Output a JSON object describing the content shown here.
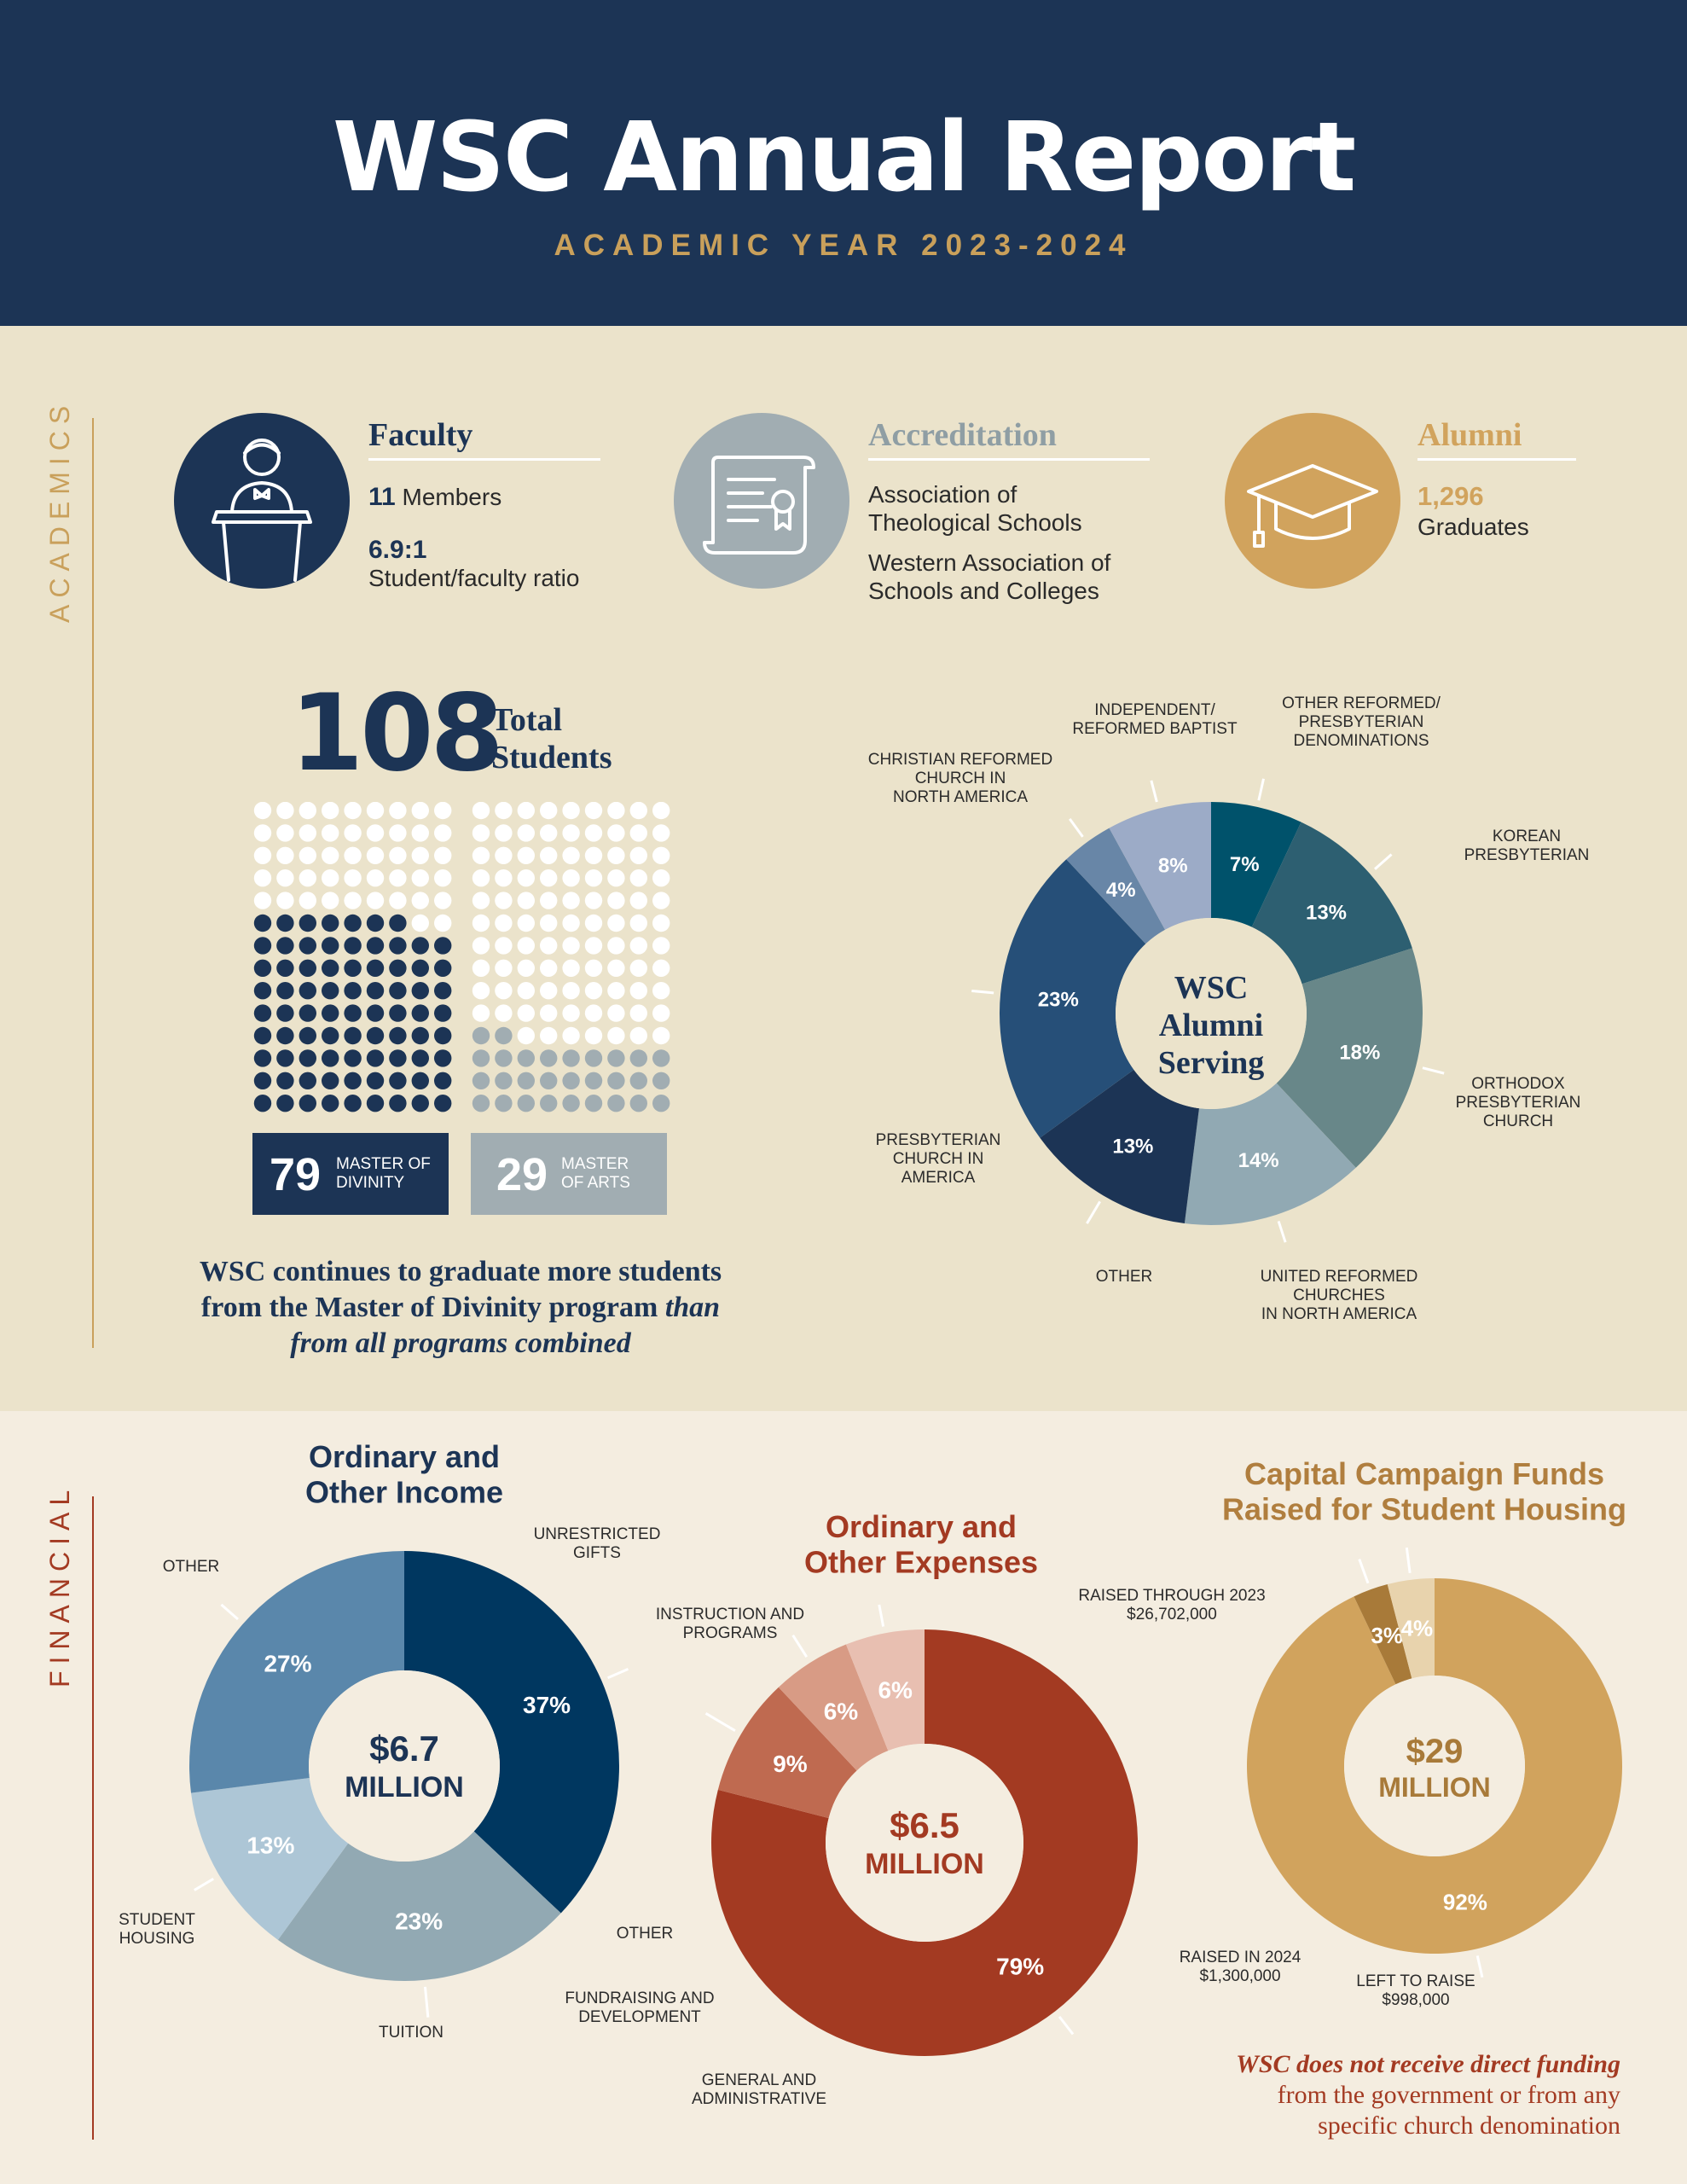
{
  "header": {
    "title": "WSC Annual Report",
    "subtitle": "ACADEMIC YEAR 2023-2024"
  },
  "academics": {
    "section_label": "ACADEMICS",
    "faculty": {
      "title": "Faculty",
      "members_count": "11",
      "members_label": "Members",
      "ratio": "6.9:1",
      "ratio_label": "Student/faculty ratio"
    },
    "accreditation": {
      "title": "Accreditation",
      "line1": "Association of",
      "line2": "Theological Schools",
      "line3": "Western Association of",
      "line4": "Schools and Colleges"
    },
    "alumni": {
      "title": "Alumni",
      "count": "1,296",
      "label": "Graduates"
    },
    "students": {
      "total": "108",
      "total_label_1": "Total",
      "total_label_2": "Students",
      "mdiv_count": "79",
      "mdiv_label_1": "MASTER OF",
      "mdiv_label_2": "DIVINITY",
      "ma_count": "29",
      "ma_label_1": "MASTER",
      "ma_label_2": "OF ARTS"
    },
    "quote": {
      "line1": "WSC continues to graduate more students",
      "line2a": "from the Master of Divinity program ",
      "line2b": "than",
      "line3": "from all programs combined"
    }
  },
  "financial": {
    "section_label": "FINANCIAL",
    "footnote": {
      "emph": "WSC does not receive direct funding",
      "line2": "from the government or from any",
      "line3": "specific church denomination"
    }
  },
  "colors": {
    "navy": "#1c3455",
    "gold": "#c9a05b",
    "rust": "#a33a22",
    "bg_academics": "#ebe3cb",
    "bg_financial": "#f4ede0",
    "slate": "#a1adb2"
  },
  "chart_data": [
    {
      "id": "alumni",
      "type": "pie",
      "title": "",
      "center_text": [
        "WSC",
        "Alumni",
        "Serving"
      ],
      "slices": [
        {
          "label": [
            "OTHER REFORMED/",
            "PRESBYTERIAN",
            "DENOMINATIONS"
          ],
          "value": 7,
          "display": "7%",
          "color": "#00526b"
        },
        {
          "label": [
            "KOREAN",
            "PRESBYTERIAN"
          ],
          "value": 13,
          "display": "13%",
          "color": "#2d5f71"
        },
        {
          "label": [
            "ORTHODOX",
            "PRESBYTERIAN",
            "CHURCH"
          ],
          "value": 18,
          "display": "18%",
          "color": "#688789"
        },
        {
          "label": [
            "UNITED REFORMED",
            "CHURCHES",
            "IN NORTH AMERICA"
          ],
          "value": 14,
          "display": "14%",
          "color": "#91a9b3"
        },
        {
          "label": [
            "OTHER"
          ],
          "value": 13,
          "display": "13%",
          "color": "#1c3455"
        },
        {
          "label": [
            "PRESBYTERIAN",
            "CHURCH IN",
            "AMERICA"
          ],
          "value": 23,
          "display": "23%",
          "color": "#264f78"
        },
        {
          "label": [
            "CHRISTIAN REFORMED",
            "CHURCH IN",
            "NORTH AMERICA"
          ],
          "value": 4,
          "display": "4%",
          "color": "#6886a7"
        },
        {
          "label": [
            "INDEPENDENT/",
            "REFORMED BAPTIST"
          ],
          "value": 8,
          "display": "8%",
          "color": "#9cabc7"
        }
      ]
    },
    {
      "id": "income",
      "type": "pie",
      "title": [
        "Ordinary and",
        "Other Income"
      ],
      "center_text": [
        "$6.7",
        "MILLION"
      ],
      "slices": [
        {
          "label": [
            "UNRESTRICTED",
            "GIFTS"
          ],
          "value": 37,
          "display": "37%",
          "color": "#003760"
        },
        {
          "label": [
            "TUITION"
          ],
          "value": 23,
          "display": "23%",
          "color": "#92a9b3"
        },
        {
          "label": [
            "STUDENT",
            "HOUSING"
          ],
          "value": 13,
          "display": "13%",
          "color": "#adc6d6"
        },
        {
          "label": [
            "OTHER"
          ],
          "value": 27,
          "display": "27%",
          "color": "#5a87ab"
        }
      ]
    },
    {
      "id": "expenses",
      "type": "pie",
      "title": [
        "Ordinary and",
        "Other Expenses"
      ],
      "center_text": [
        "$6.5",
        "MILLION"
      ],
      "slices": [
        {
          "label": [
            "INSTRUCTION AND",
            "PROGRAMS"
          ],
          "value": 79,
          "display": "79%",
          "color": "#a33a22"
        },
        {
          "label": [
            "GENERAL AND",
            "ADMINISTRATIVE"
          ],
          "value": 9,
          "display": "9%",
          "color": "#bf6a50"
        },
        {
          "label": [
            "FUNDRAISING AND",
            "DEVELOPMENT"
          ],
          "value": 6,
          "display": "6%",
          "color": "#d89b85"
        },
        {
          "label": [
            "OTHER"
          ],
          "value": 6,
          "display": "6%",
          "color": "#e8bfb1"
        }
      ]
    },
    {
      "id": "campaign",
      "type": "pie",
      "title": [
        "Capital Campaign Funds",
        "Raised for Student Housing"
      ],
      "center_text": [
        "$29",
        "MILLION"
      ],
      "slices": [
        {
          "label": [
            "RAISED THROUGH 2023",
            "$26,702,000"
          ],
          "value": 92,
          "display": "92%",
          "color": "#d1a35d"
        },
        {
          "label": [
            "LEFT TO RAISE",
            "$998,000"
          ],
          "value": 3,
          "display": "3%",
          "color": "#a87a39"
        },
        {
          "label": [
            "RAISED IN 2024",
            "$1,300,000"
          ],
          "value": 4,
          "display": "4%",
          "color": "#e8d3ad"
        }
      ]
    }
  ]
}
